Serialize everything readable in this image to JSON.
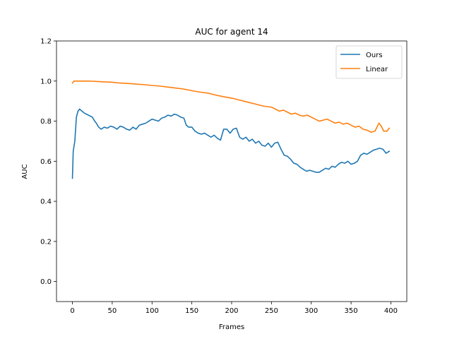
{
  "chart_data": {
    "type": "line",
    "title": "AUC for agent 14",
    "xlabel": "Frames",
    "ylabel": "AUC",
    "xlim": [
      -20,
      420
    ],
    "ylim": [
      -0.1,
      1.2
    ],
    "xticks": [
      0,
      50,
      100,
      150,
      200,
      250,
      300,
      350,
      400
    ],
    "yticks": [
      0.0,
      0.2,
      0.4,
      0.6,
      0.8,
      1.0,
      1.2
    ],
    "xtick_labels": [
      "0",
      "50",
      "100",
      "150",
      "200",
      "250",
      "300",
      "350",
      "400"
    ],
    "ytick_labels": [
      "0.0",
      "0.2",
      "0.4",
      "0.6",
      "0.8",
      "1.0",
      "1.2"
    ],
    "grid": false,
    "legend": "top-right",
    "series": [
      {
        "name": "Ours",
        "color": "#1f77b4",
        "points": [
          [
            0,
            0.515
          ],
          [
            1,
            0.65
          ],
          [
            3,
            0.7
          ],
          [
            5,
            0.82
          ],
          [
            7,
            0.85
          ],
          [
            9,
            0.86
          ],
          [
            12,
            0.85
          ],
          [
            15,
            0.84
          ],
          [
            20,
            0.83
          ],
          [
            25,
            0.82
          ],
          [
            28,
            0.8
          ],
          [
            30,
            0.79
          ],
          [
            33,
            0.77
          ],
          [
            36,
            0.76
          ],
          [
            40,
            0.77
          ],
          [
            44,
            0.765
          ],
          [
            48,
            0.775
          ],
          [
            52,
            0.77
          ],
          [
            56,
            0.76
          ],
          [
            60,
            0.775
          ],
          [
            64,
            0.77
          ],
          [
            68,
            0.76
          ],
          [
            72,
            0.755
          ],
          [
            76,
            0.77
          ],
          [
            80,
            0.76
          ],
          [
            84,
            0.78
          ],
          [
            88,
            0.785
          ],
          [
            92,
            0.79
          ],
          [
            96,
            0.8
          ],
          [
            100,
            0.81
          ],
          [
            104,
            0.805
          ],
          [
            108,
            0.8
          ],
          [
            112,
            0.815
          ],
          [
            116,
            0.82
          ],
          [
            120,
            0.83
          ],
          [
            124,
            0.825
          ],
          [
            128,
            0.835
          ],
          [
            132,
            0.83
          ],
          [
            136,
            0.82
          ],
          [
            140,
            0.815
          ],
          [
            143,
            0.78
          ],
          [
            146,
            0.77
          ],
          [
            150,
            0.77
          ],
          [
            154,
            0.75
          ],
          [
            158,
            0.74
          ],
          [
            162,
            0.735
          ],
          [
            166,
            0.74
          ],
          [
            170,
            0.73
          ],
          [
            174,
            0.72
          ],
          [
            178,
            0.73
          ],
          [
            182,
            0.715
          ],
          [
            186,
            0.705
          ],
          [
            190,
            0.76
          ],
          [
            194,
            0.76
          ],
          [
            198,
            0.74
          ],
          [
            202,
            0.76
          ],
          [
            206,
            0.765
          ],
          [
            210,
            0.72
          ],
          [
            214,
            0.71
          ],
          [
            218,
            0.72
          ],
          [
            222,
            0.7
          ],
          [
            226,
            0.71
          ],
          [
            230,
            0.69
          ],
          [
            234,
            0.7
          ],
          [
            238,
            0.68
          ],
          [
            242,
            0.675
          ],
          [
            246,
            0.69
          ],
          [
            250,
            0.67
          ],
          [
            254,
            0.69
          ],
          [
            258,
            0.695
          ],
          [
            262,
            0.66
          ],
          [
            266,
            0.63
          ],
          [
            270,
            0.625
          ],
          [
            274,
            0.61
          ],
          [
            278,
            0.59
          ],
          [
            282,
            0.585
          ],
          [
            286,
            0.57
          ],
          [
            290,
            0.56
          ],
          [
            294,
            0.55
          ],
          [
            298,
            0.555
          ],
          [
            302,
            0.55
          ],
          [
            306,
            0.545
          ],
          [
            310,
            0.545
          ],
          [
            314,
            0.555
          ],
          [
            318,
            0.565
          ],
          [
            322,
            0.56
          ],
          [
            326,
            0.575
          ],
          [
            330,
            0.57
          ],
          [
            334,
            0.585
          ],
          [
            338,
            0.595
          ],
          [
            342,
            0.59
          ],
          [
            346,
            0.6
          ],
          [
            350,
            0.585
          ],
          [
            354,
            0.59
          ],
          [
            358,
            0.6
          ],
          [
            362,
            0.63
          ],
          [
            366,
            0.64
          ],
          [
            370,
            0.635
          ],
          [
            374,
            0.645
          ],
          [
            378,
            0.655
          ],
          [
            382,
            0.66
          ],
          [
            386,
            0.665
          ],
          [
            390,
            0.66
          ],
          [
            394,
            0.64
          ],
          [
            398,
            0.65
          ]
        ]
      },
      {
        "name": "Linear",
        "color": "#ff7f0e",
        "points": [
          [
            0,
            0.99
          ],
          [
            2,
            1.0
          ],
          [
            10,
            1.0
          ],
          [
            20,
            1.0
          ],
          [
            30,
            0.998
          ],
          [
            40,
            0.996
          ],
          [
            50,
            0.994
          ],
          [
            60,
            0.99
          ],
          [
            70,
            0.988
          ],
          [
            80,
            0.985
          ],
          [
            90,
            0.982
          ],
          [
            100,
            0.978
          ],
          [
            110,
            0.975
          ],
          [
            120,
            0.97
          ],
          [
            130,
            0.965
          ],
          [
            140,
            0.96
          ],
          [
            150,
            0.952
          ],
          [
            160,
            0.945
          ],
          [
            170,
            0.94
          ],
          [
            180,
            0.93
          ],
          [
            190,
            0.922
          ],
          [
            200,
            0.915
          ],
          [
            210,
            0.905
          ],
          [
            220,
            0.895
          ],
          [
            230,
            0.885
          ],
          [
            240,
            0.875
          ],
          [
            250,
            0.87
          ],
          [
            255,
            0.86
          ],
          [
            260,
            0.85
          ],
          [
            265,
            0.855
          ],
          [
            270,
            0.845
          ],
          [
            275,
            0.835
          ],
          [
            280,
            0.84
          ],
          [
            285,
            0.83
          ],
          [
            290,
            0.825
          ],
          [
            295,
            0.83
          ],
          [
            300,
            0.82
          ],
          [
            305,
            0.81
          ],
          [
            310,
            0.8
          ],
          [
            315,
            0.805
          ],
          [
            320,
            0.81
          ],
          [
            325,
            0.8
          ],
          [
            330,
            0.79
          ],
          [
            335,
            0.795
          ],
          [
            340,
            0.785
          ],
          [
            345,
            0.79
          ],
          [
            350,
            0.78
          ],
          [
            355,
            0.77
          ],
          [
            360,
            0.775
          ],
          [
            365,
            0.76
          ],
          [
            370,
            0.755
          ],
          [
            375,
            0.745
          ],
          [
            380,
            0.75
          ],
          [
            385,
            0.79
          ],
          [
            388,
            0.775
          ],
          [
            391,
            0.75
          ],
          [
            395,
            0.75
          ],
          [
            398,
            0.765
          ]
        ]
      }
    ]
  }
}
